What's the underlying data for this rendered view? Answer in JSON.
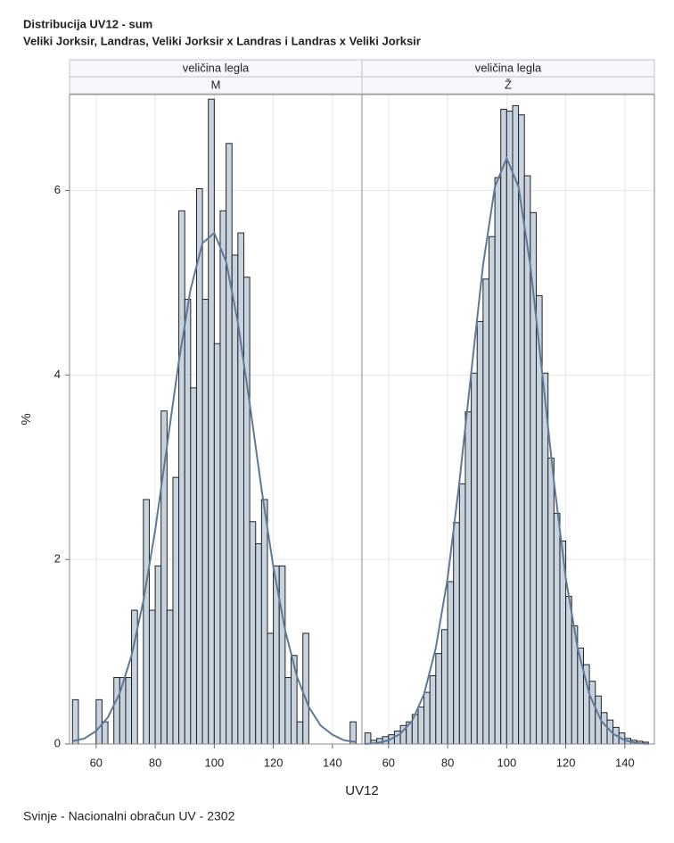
{
  "title": "Distribucija UV12 - sum",
  "subtitle": "Veliki Jorksir, Landras, Veliki Jorksir x Landras i Landras x Veliki Jorksir",
  "footnote": "Svinje - Nacionalni obračun UV - 2302",
  "x_label": "UV12",
  "y_label": "%",
  "chart_data": [
    {
      "type": "histogram",
      "panel_header": "veličina legla",
      "panel_label": "M",
      "bins": [
        52,
        54,
        56,
        58,
        60,
        62,
        64,
        66,
        68,
        70,
        72,
        74,
        76,
        78,
        80,
        82,
        84,
        86,
        88,
        90,
        92,
        94,
        96,
        98,
        100,
        102,
        104,
        106,
        108,
        110,
        112,
        114,
        116,
        118,
        120,
        122,
        124,
        126,
        128,
        130,
        132,
        134,
        136,
        138,
        140,
        142,
        144,
        146,
        148
      ],
      "values": [
        0.48,
        0,
        0,
        0,
        0.48,
        0.24,
        0,
        0.72,
        0.72,
        0.72,
        1.45,
        0,
        2.65,
        1.45,
        1.93,
        3.61,
        1.45,
        2.89,
        5.78,
        4.82,
        3.86,
        6.02,
        4.82,
        6.99,
        4.34,
        5.78,
        6.51,
        5.3,
        5.54,
        5.06,
        2.41,
        2.17,
        2.65,
        1.2,
        1.93,
        1.93,
        0.72,
        0.96,
        0.24,
        1.2,
        0,
        0,
        0,
        0,
        0,
        0,
        0,
        0.24
      ],
      "color": "#c8d3e0",
      "density": {
        "x": [
          52,
          56,
          60,
          64,
          68,
          72,
          76,
          80,
          84,
          88,
          92,
          96,
          100,
          104,
          108,
          112,
          116,
          120,
          124,
          128,
          132,
          136,
          140,
          144,
          148
        ],
        "values": [
          0.03,
          0.06,
          0.14,
          0.29,
          0.55,
          0.96,
          1.55,
          2.32,
          3.23,
          4.15,
          4.93,
          5.43,
          5.54,
          5.23,
          4.57,
          3.69,
          2.76,
          1.92,
          1.23,
          0.73,
          0.4,
          0.2,
          0.1,
          0.04,
          0.02
        ],
        "color": "#5f7a99"
      },
      "xlim": [
        51,
        150
      ],
      "ylim": [
        0,
        7.04
      ],
      "xticks": [
        60,
        80,
        100,
        120,
        140
      ],
      "yticks": [
        0,
        2,
        4,
        6
      ],
      "grid": true
    },
    {
      "type": "histogram",
      "panel_header": "veličina legla",
      "panel_label": "Ž",
      "bins": [
        52,
        54,
        56,
        58,
        60,
        62,
        64,
        66,
        68,
        70,
        72,
        74,
        76,
        78,
        80,
        82,
        84,
        86,
        88,
        90,
        92,
        94,
        96,
        98,
        100,
        102,
        104,
        106,
        108,
        110,
        112,
        114,
        116,
        118,
        120,
        122,
        124,
        126,
        128,
        130,
        132,
        134,
        136,
        138,
        140,
        142,
        144,
        146,
        148
      ],
      "values": [
        0.12,
        0.04,
        0.06,
        0.08,
        0.1,
        0.14,
        0.2,
        0.24,
        0.32,
        0.4,
        0.56,
        0.74,
        0.98,
        1.24,
        1.76,
        2.4,
        2.82,
        3.6,
        4.02,
        4.58,
        5.04,
        5.5,
        6.14,
        6.88,
        6.86,
        6.92,
        6.82,
        6.16,
        5.76,
        4.86,
        4.02,
        3.1,
        2.5,
        2.2,
        1.6,
        1.28,
        1.04,
        0.86,
        0.68,
        0.52,
        0.34,
        0.26,
        0.18,
        0.12,
        0.06,
        0.04,
        0.03,
        0.02
      ],
      "color": "#c8d3e0",
      "density": {
        "x": [
          52,
          56,
          60,
          64,
          68,
          72,
          76,
          80,
          84,
          88,
          92,
          96,
          100,
          104,
          108,
          112,
          116,
          120,
          124,
          128,
          132,
          136,
          140,
          144,
          148
        ],
        "values": [
          0,
          0.01,
          0.04,
          0.11,
          0.25,
          0.54,
          1.04,
          1.8,
          2.84,
          4.03,
          5.19,
          6.04,
          6.35,
          6.04,
          5.19,
          4.03,
          2.84,
          1.8,
          1.04,
          0.54,
          0.25,
          0.11,
          0.04,
          0.01,
          0
        ],
        "color": "#5f7a99"
      },
      "xlim": [
        51,
        150
      ],
      "ylim": [
        0,
        7.04
      ],
      "xticks": [
        60,
        80,
        100,
        120,
        140
      ],
      "yticks": [
        0,
        2,
        4,
        6
      ],
      "grid": true
    }
  ]
}
